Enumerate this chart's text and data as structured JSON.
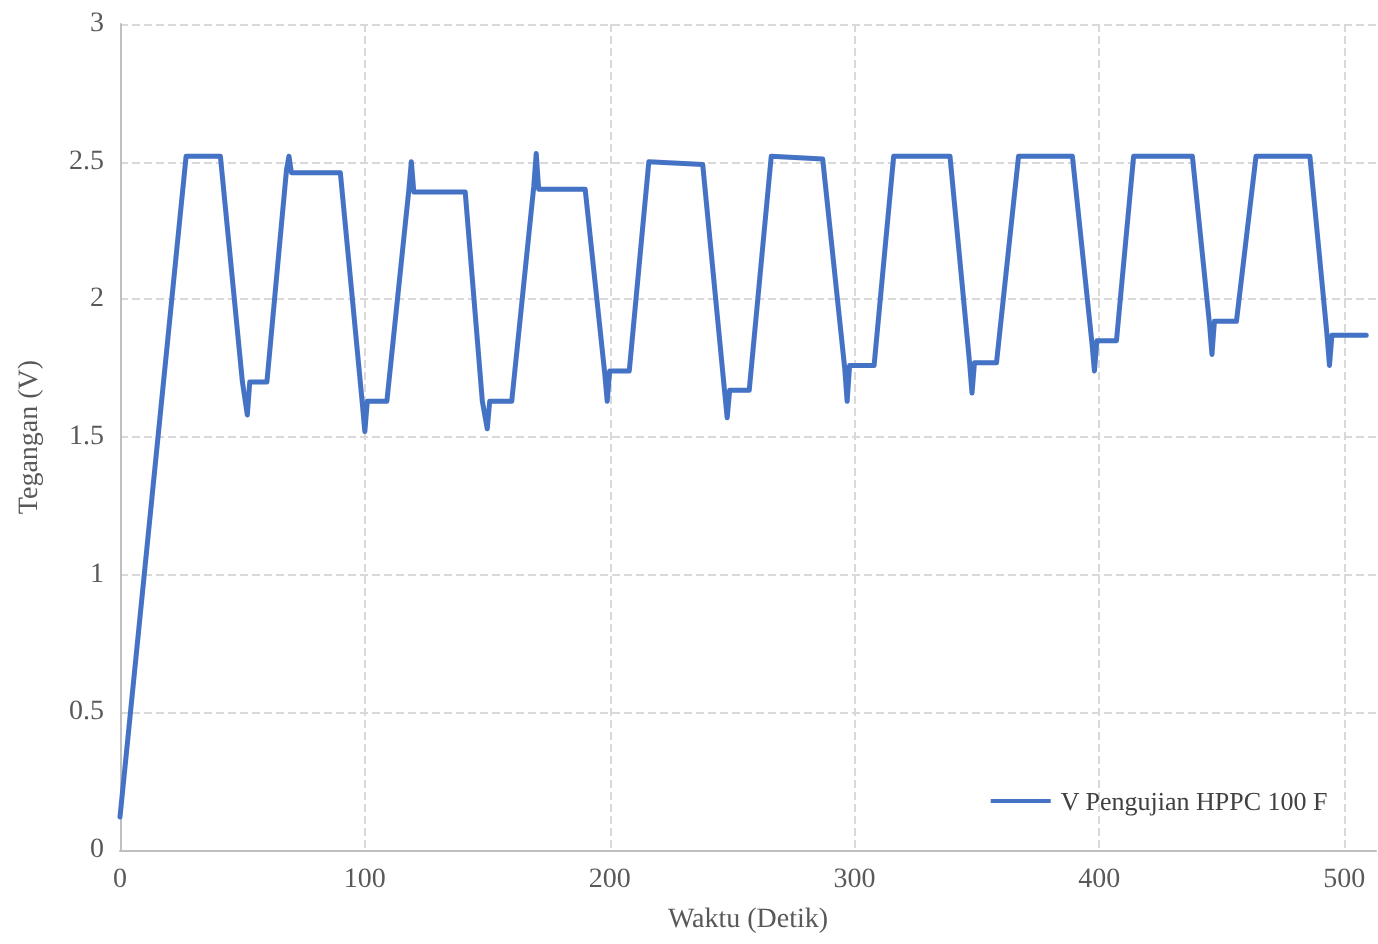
{
  "chart_data": {
    "type": "line",
    "xlabel": "Waktu (Detik)",
    "ylabel": "Tegangan (V)",
    "xlim": [
      0,
      513
    ],
    "xticks": [
      0,
      100,
      200,
      300,
      400,
      500
    ],
    "ylim": [
      0,
      3
    ],
    "yticks": [
      0,
      0.5,
      1,
      1.5,
      2,
      2.5,
      3
    ],
    "grid": true,
    "legend": "bottom right",
    "marker": "none",
    "line_style": "solid",
    "series": [
      {
        "name": "V Pengujian HPPC 100 F",
        "color": "#4472c4",
        "x": [
          0,
          27,
          41,
          50,
          52,
          53,
          60,
          68,
          69,
          70,
          90,
          99,
          100,
          101,
          109,
          118,
          119,
          120,
          141,
          148,
          150,
          151,
          160,
          169,
          170,
          171,
          190,
          198,
          199,
          200,
          208,
          216,
          238,
          247,
          248,
          249,
          257,
          266,
          287,
          296,
          297,
          298,
          308,
          316,
          339,
          347,
          348,
          349,
          358,
          367,
          389,
          397,
          398,
          399,
          407,
          414,
          438,
          445,
          446,
          447,
          456,
          464,
          486,
          493,
          494,
          495,
          509
        ],
        "values": [
          0.12,
          2.52,
          2.52,
          1.7,
          1.58,
          1.7,
          1.7,
          2.47,
          2.52,
          2.46,
          2.46,
          1.62,
          1.52,
          1.63,
          1.63,
          2.4,
          2.5,
          2.39,
          2.39,
          1.63,
          1.53,
          1.63,
          1.63,
          2.41,
          2.53,
          2.4,
          2.4,
          1.73,
          1.63,
          1.74,
          1.74,
          2.5,
          2.49,
          1.66,
          1.57,
          1.67,
          1.67,
          2.52,
          2.51,
          1.75,
          1.63,
          1.76,
          1.76,
          2.52,
          2.52,
          1.77,
          1.66,
          1.77,
          1.77,
          2.52,
          2.52,
          1.84,
          1.74,
          1.85,
          1.85,
          2.52,
          2.52,
          1.91,
          1.8,
          1.92,
          1.92,
          2.52,
          2.52,
          1.87,
          1.76,
          1.87,
          1.87
        ]
      }
    ]
  }
}
